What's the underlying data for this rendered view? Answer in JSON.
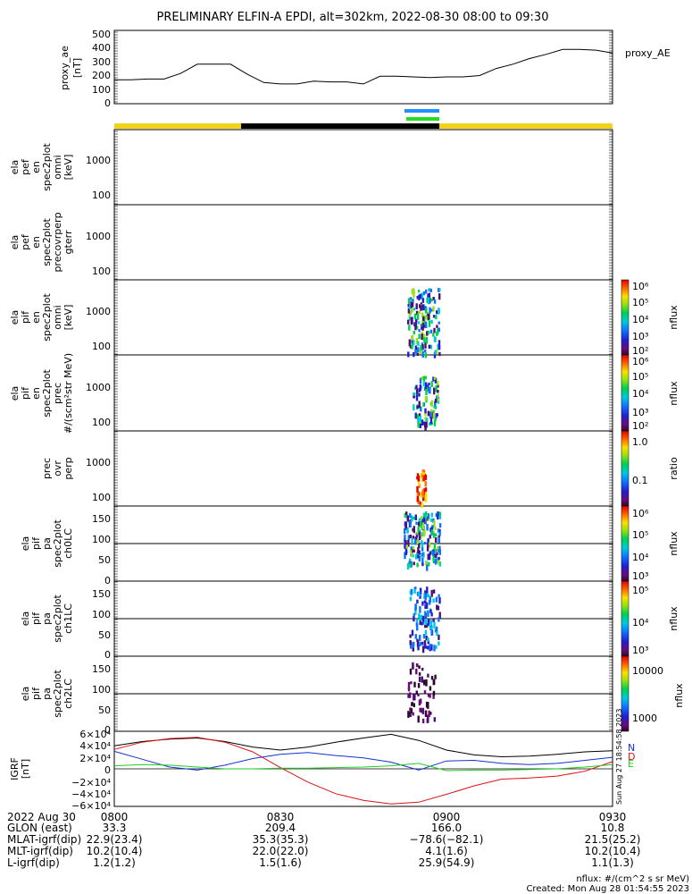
{
  "title": "PRELIMINARY ELFIN-A EPDI, alt=302km, 2022-08-30 08:00 to 09:30",
  "colors": {
    "ae_line": "#000000",
    "bar_yellow": "#f5d21a",
    "bar_black": "#000000",
    "bar_blue": "#1e90ff",
    "bar_green": "#22dd22",
    "field_black": "#000000",
    "field_red": "#dd1111",
    "field_blue": "#1133cc",
    "field_green": "#22cc22"
  },
  "panels": {
    "ae": {
      "ylabel": [
        "proxy_ae",
        "[nT]"
      ],
      "legend": "proxy_AE",
      "yticks": [
        "500",
        "400",
        "300",
        "200",
        "100",
        "0"
      ]
    },
    "p1": {
      "ylabel": [
        "ela",
        "pef",
        "en",
        "spec2plot",
        "omni",
        "[keV]"
      ],
      "yticks": [
        "1000",
        "100"
      ]
    },
    "p2": {
      "ylabel": [
        "ela",
        "pef",
        "en",
        "spec2plot",
        "precovrperp",
        "gterr"
      ],
      "yticks": [
        "1000",
        "100"
      ]
    },
    "p3": {
      "ylabel": [
        "ela",
        "pif",
        "en",
        "spec2plot",
        "omni",
        "[keV]"
      ],
      "yticks": [
        "1000",
        "100"
      ],
      "cbar_ticks": [
        "10⁶",
        "10⁵",
        "10⁴",
        "10³",
        "10²"
      ],
      "cbar_label": "nflux"
    },
    "p4": {
      "ylabel": [
        "ela",
        "pif",
        "en",
        "spec2plot",
        "prec",
        "#/(scm²str MeV)"
      ],
      "yticks": [
        "1000",
        "100"
      ],
      "cbar_ticks": [
        "10⁶",
        "10⁵",
        "10⁴",
        "10³",
        "10²"
      ],
      "cbar_label": "nflux"
    },
    "p5": {
      "ylabel": [
        "prec",
        "ovr",
        "perp"
      ],
      "yticks": [
        "1000",
        "100"
      ],
      "cbar_ticks": [
        "1.0",
        "0.1"
      ],
      "cbar_label": "ratio"
    },
    "p6": {
      "ylabel": [
        "ela",
        "pif",
        "pa",
        "spec2plot",
        "ch0LC"
      ],
      "yticks": [
        "150",
        "100",
        "50",
        "0"
      ],
      "cbar_ticks": [
        "10⁶",
        "10⁵",
        "10⁴",
        "10³"
      ],
      "cbar_label": "nflux"
    },
    "p7": {
      "ylabel": [
        "ela",
        "pif",
        "pa",
        "spec2plot",
        "ch1LC"
      ],
      "yticks": [
        "150",
        "100",
        "50",
        "0"
      ],
      "cbar_ticks": [
        "10⁵",
        "10⁴",
        "10³"
      ],
      "cbar_label": "nflux"
    },
    "p8": {
      "ylabel": [
        "ela",
        "pif",
        "pa",
        "spec2plot",
        "ch2LC"
      ],
      "yticks": [
        "150",
        "100",
        "50",
        "0"
      ],
      "cbar_ticks": [
        "10000",
        "1000"
      ],
      "cbar_label": "nflux"
    },
    "igrf": {
      "ylabel": [
        "IGRF",
        "[nT]"
      ],
      "yticks": [
        "6×10⁴",
        "4×10⁴",
        "2×10⁴",
        "0",
        "−2×10⁴",
        "−4×10⁴",
        "−6×10⁴"
      ],
      "side": "Sun Aug 27 18:54:58 2023",
      "comp": [
        "N",
        "E",
        "D"
      ]
    }
  },
  "footer": {
    "rows": [
      {
        "label": "2022 Aug 30",
        "vals": [
          "0800",
          "0830",
          "0900",
          "0930"
        ]
      },
      {
        "label": "GLON (east)",
        "vals": [
          "33.3",
          "209.4",
          "166.0",
          "10.8"
        ]
      },
      {
        "label": "MLAT-igrf(dip)",
        "vals": [
          "22.9(23.4)",
          "35.3(35.3)",
          "−78.6(−82.1)",
          "21.5(25.2)"
        ]
      },
      {
        "label": "MLT-igrf(dip)",
        "vals": [
          "10.2(10.4)",
          "22.0(22.0)",
          "4.1(1.6)",
          "10.2(10.4)"
        ]
      },
      {
        "label": "L-igrf(dip)",
        "vals": [
          "1.2(1.2)",
          "1.5(1.6)",
          "25.9(54.9)",
          "1.1(1.3)"
        ]
      }
    ],
    "units_note": "nflux: #/(cm^2 s sr MeV)",
    "created": "Created: Mon Aug 28 01:54:55 2023"
  },
  "chart_data": {
    "type": "line",
    "time_labels": [
      "0800",
      "0830",
      "0900",
      "0930"
    ],
    "proxy_ae": {
      "ylim": [
        0,
        500
      ],
      "t": [
        0,
        3,
        6,
        9,
        12,
        15,
        18,
        21,
        24,
        27,
        30,
        33,
        36,
        39,
        42,
        45,
        48,
        51,
        54,
        57,
        60,
        63,
        66,
        69,
        72,
        75,
        78,
        81,
        84,
        87,
        90
      ],
      "values": [
        170,
        170,
        175,
        175,
        215,
        280,
        280,
        280,
        210,
        150,
        140,
        140,
        160,
        155,
        155,
        140,
        195,
        195,
        190,
        185,
        190,
        190,
        200,
        250,
        280,
        320,
        350,
        385,
        385,
        380,
        360
      ]
    },
    "igrf": {
      "ylim": [
        -60000,
        60000
      ],
      "t": [
        0,
        5,
        10,
        15,
        20,
        25,
        30,
        35,
        40,
        45,
        50,
        55,
        60,
        65,
        70,
        75,
        80,
        85,
        90
      ],
      "series": [
        {
          "comp": "black",
          "values": [
            38000,
            45000,
            49000,
            51000,
            45000,
            36000,
            31000,
            36000,
            44000,
            51000,
            57000,
            47000,
            31000,
            23000,
            20000,
            21000,
            24000,
            28000,
            30000
          ]
        },
        {
          "comp": "red",
          "values": [
            32000,
            44000,
            50000,
            52000,
            44000,
            28000,
            2000,
            -22000,
            -41000,
            -52000,
            -58000,
            -55000,
            -42000,
            -28000,
            -17000,
            -15000,
            -12000,
            -4000,
            12000
          ]
        },
        {
          "comp": "blue",
          "values": [
            29000,
            16000,
            3000,
            -2000,
            6000,
            17000,
            24000,
            27000,
            22000,
            18000,
            11000,
            -2000,
            13000,
            14000,
            9000,
            7000,
            9000,
            14000,
            19000
          ]
        },
        {
          "comp": "green",
          "values": [
            5000,
            7000,
            6000,
            3000,
            0,
            0,
            1000,
            1000,
            2000,
            3000,
            5000,
            9000,
            -3000,
            -2000,
            -2000,
            -1000,
            0,
            3000,
            7000
          ]
        }
      ]
    },
    "energy_ylim": [
      50,
      8000
    ],
    "pitch_ylim": [
      0,
      180
    ]
  }
}
